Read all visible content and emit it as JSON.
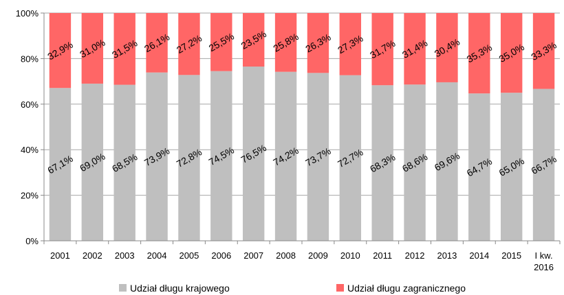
{
  "chart_data": {
    "type": "bar",
    "stacked": true,
    "categories": [
      "2001",
      "2002",
      "2003",
      "2004",
      "2005",
      "2006",
      "2007",
      "2008",
      "2009",
      "2010",
      "2011",
      "2012",
      "2013",
      "2014",
      "2015",
      "I kw.\n2016"
    ],
    "series": [
      {
        "name": "Udział długu krajowego",
        "color": "#bfbfbf",
        "values": [
          67.1,
          69.0,
          68.5,
          73.9,
          72.8,
          74.5,
          76.5,
          74.2,
          73.7,
          72.7,
          68.3,
          68.6,
          69.6,
          64.7,
          65.0,
          66.7
        ],
        "labels": [
          "67,1%",
          "69,0%",
          "68,5%",
          "73,9%",
          "72,8%",
          "74,5%",
          "76,5%",
          "74,2%",
          "73,7%",
          "72,7%",
          "68,3%",
          "68,6%",
          "69,6%",
          "64,7%",
          "65,0%",
          "66,7%"
        ]
      },
      {
        "name": "Udział długu zagranicznego",
        "color": "#ff6666",
        "values": [
          32.9,
          31.0,
          31.5,
          26.1,
          27.2,
          25.5,
          23.5,
          25.8,
          26.3,
          27.3,
          31.7,
          31.4,
          30.4,
          35.3,
          35.0,
          33.3
        ],
        "labels": [
          "32,9%",
          "31,0%",
          "31,5%",
          "26,1%",
          "27,2%",
          "25,5%",
          "23,5%",
          "25,8%",
          "26,3%",
          "27,3%",
          "31,7%",
          "31,4%",
          "30,4%",
          "35,3%",
          "35,0%",
          "33,3%"
        ]
      }
    ],
    "ylim": [
      0,
      100
    ],
    "yticks": [
      "0%",
      "20%",
      "40%",
      "60%",
      "80%",
      "100%"
    ],
    "ytick_values": [
      0,
      20,
      40,
      60,
      80,
      100
    ],
    "grid": true,
    "legend": "bottom",
    "xlabel": "",
    "ylabel": ""
  }
}
